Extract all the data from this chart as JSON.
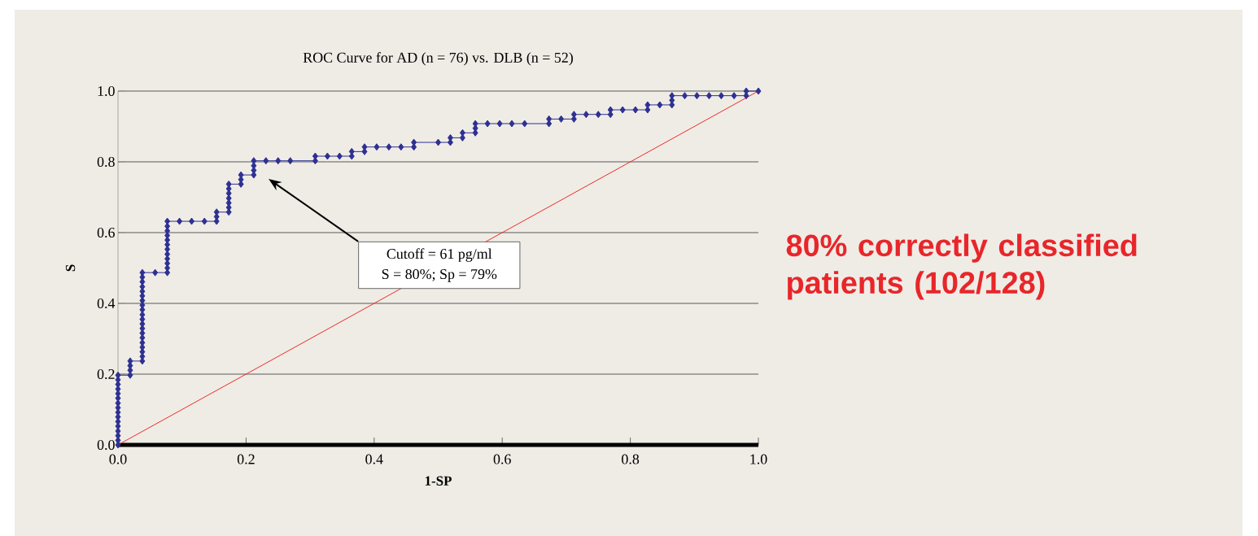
{
  "chart_data": {
    "type": "line",
    "title": "ROC Curve for AD (n = 76) vs. DLB (n = 52)",
    "xlabel": "1-SP",
    "ylabel": "S",
    "xlim": [
      0,
      1
    ],
    "ylim": [
      0,
      1
    ],
    "xticks": [
      {
        "value": 0,
        "label": "0.0"
      },
      0.2,
      0.4,
      0.6,
      0.8,
      {
        "value": 1,
        "label": "1.0"
      }
    ],
    "yticks": [
      {
        "value": 0,
        "label": "0.0"
      },
      0.2,
      0.4,
      0.6,
      0.8,
      {
        "value": 1,
        "label": "1.0"
      }
    ],
    "grid": "y",
    "series": [
      {
        "color": "#2e3192",
        "marker": "diamond",
        "x": [
          0,
          0,
          0,
          0,
          0,
          0,
          0,
          0,
          0,
          0,
          0,
          0,
          0,
          0,
          0,
          0,
          0.019,
          0.019,
          0.019,
          0.019,
          0.038,
          0.038,
          0.038,
          0.038,
          0.038,
          0.038,
          0.038,
          0.038,
          0.038,
          0.038,
          0.038,
          0.038,
          0.038,
          0.038,
          0.038,
          0.038,
          0.038,
          0.038,
          0.038,
          0.038,
          0.058,
          0.077,
          0.077,
          0.077,
          0.077,
          0.077,
          0.077,
          0.077,
          0.077,
          0.077,
          0.077,
          0.077,
          0.077,
          0.096,
          0.115,
          0.135,
          0.154,
          0.154,
          0.154,
          0.173,
          0.173,
          0.173,
          0.173,
          0.173,
          0.173,
          0.173,
          0.192,
          0.192,
          0.192,
          0.212,
          0.212,
          0.212,
          0.212,
          0.231,
          0.25,
          0.269,
          0.308,
          0.308,
          0.327,
          0.346,
          0.365,
          0.365,
          0.385,
          0.385,
          0.404,
          0.423,
          0.442,
          0.462,
          0.462,
          0.5,
          0.519,
          0.519,
          0.538,
          0.538,
          0.558,
          0.558,
          0.558,
          0.577,
          0.596,
          0.615,
          0.635,
          0.673,
          0.673,
          0.692,
          0.712,
          0.712,
          0.731,
          0.75,
          0.769,
          0.769,
          0.788,
          0.808,
          0.827,
          0.827,
          0.846,
          0.865,
          0.865,
          0.865,
          0.885,
          0.904,
          0.923,
          0.942,
          0.962,
          0.981,
          0.981,
          1
        ],
        "values": [
          0,
          0.013,
          0.026,
          0.039,
          0.053,
          0.066,
          0.079,
          0.092,
          0.105,
          0.118,
          0.132,
          0.145,
          0.158,
          0.171,
          0.184,
          0.197,
          0.197,
          0.211,
          0.224,
          0.237,
          0.237,
          0.25,
          0.263,
          0.276,
          0.289,
          0.303,
          0.316,
          0.329,
          0.342,
          0.355,
          0.368,
          0.382,
          0.395,
          0.408,
          0.421,
          0.434,
          0.447,
          0.461,
          0.474,
          0.487,
          0.487,
          0.487,
          0.5,
          0.513,
          0.526,
          0.539,
          0.553,
          0.566,
          0.579,
          0.592,
          0.605,
          0.618,
          0.632,
          0.632,
          0.632,
          0.632,
          0.632,
          0.645,
          0.658,
          0.658,
          0.671,
          0.684,
          0.697,
          0.711,
          0.724,
          0.737,
          0.737,
          0.75,
          0.763,
          0.763,
          0.776,
          0.789,
          0.803,
          0.803,
          0.803,
          0.803,
          0.803,
          0.816,
          0.816,
          0.816,
          0.816,
          0.829,
          0.829,
          0.842,
          0.842,
          0.842,
          0.842,
          0.842,
          0.855,
          0.855,
          0.855,
          0.868,
          0.868,
          0.882,
          0.882,
          0.895,
          0.908,
          0.908,
          0.908,
          0.908,
          0.908,
          0.908,
          0.921,
          0.921,
          0.921,
          0.934,
          0.934,
          0.934,
          0.934,
          0.947,
          0.947,
          0.947,
          0.947,
          0.961,
          0.961,
          0.961,
          0.974,
          0.987,
          0.987,
          0.987,
          0.987,
          0.987,
          0.987,
          0.987,
          1,
          1
        ]
      },
      {
        "color": "#ee2a24",
        "marker": "none",
        "x": [
          0,
          1
        ],
        "values": [
          0,
          1
        ]
      }
    ],
    "annotations": [
      "Cutoff = 61 pg/ml",
      "S = 80%; Sp = 79%",
      "80% correctly classified patients (102/128)"
    ]
  }
}
